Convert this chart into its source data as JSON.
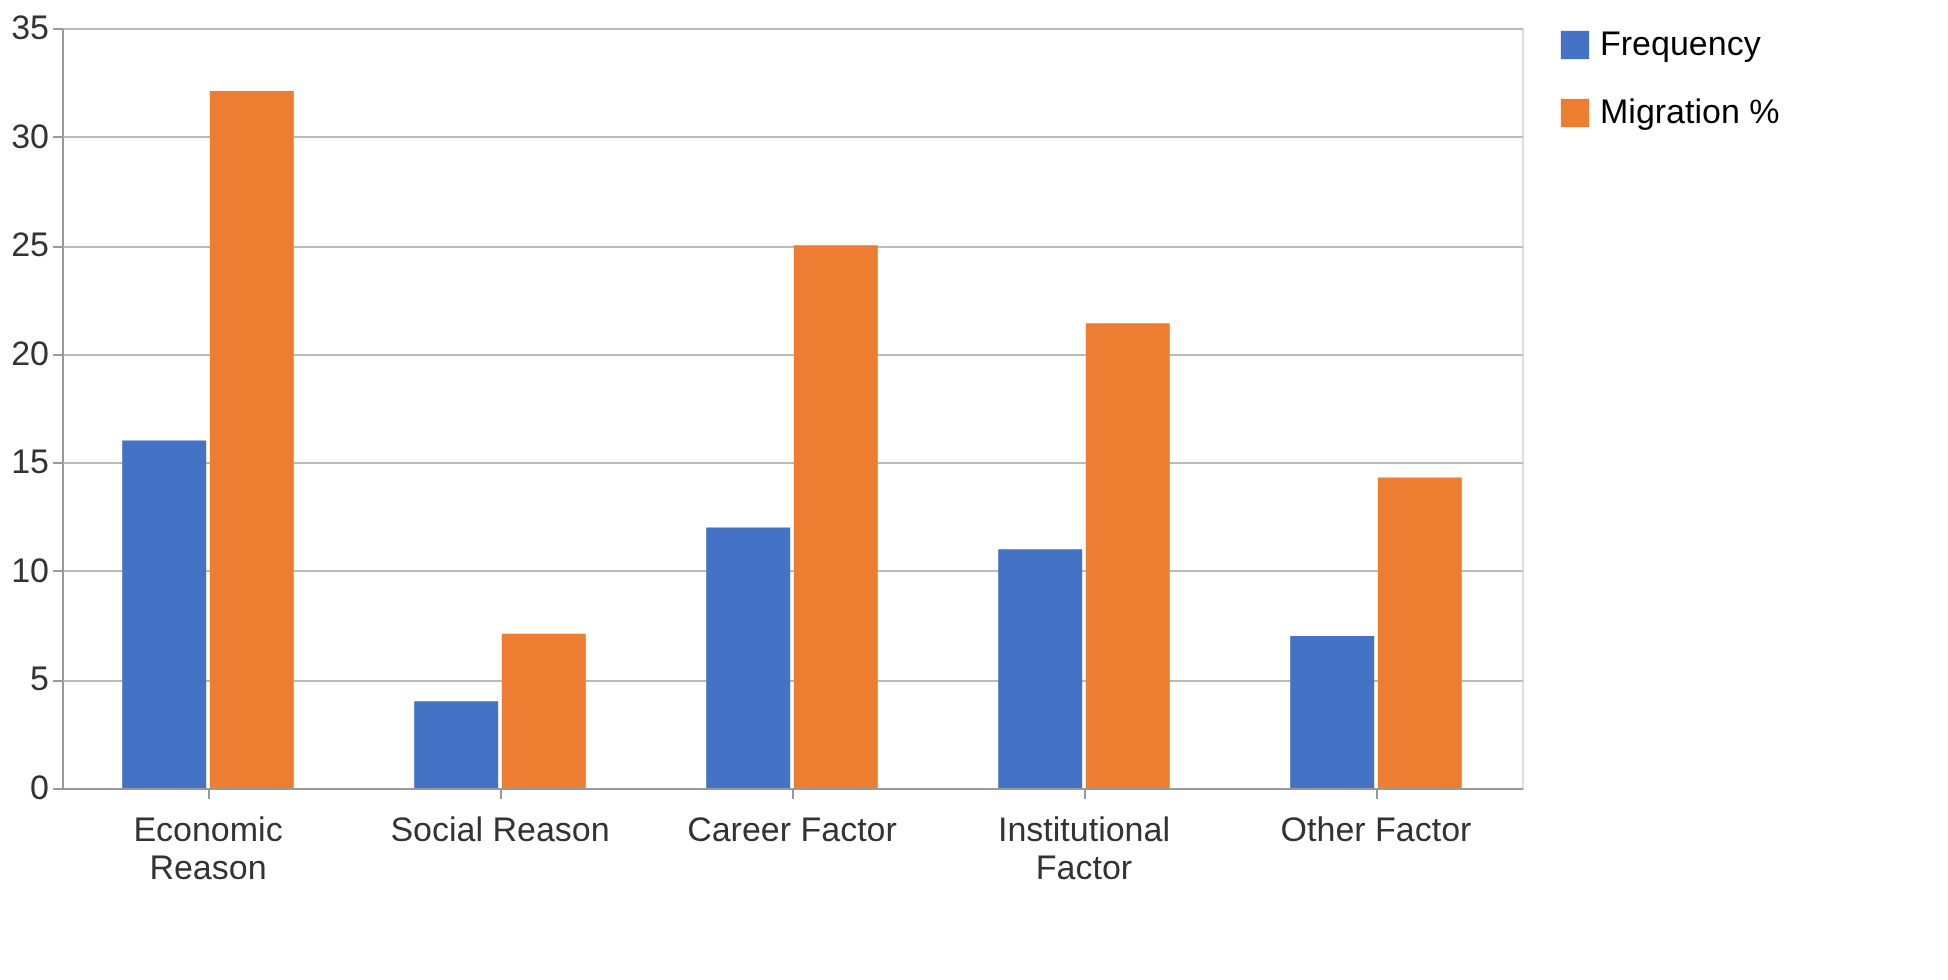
{
  "chart_data": {
    "type": "bar",
    "categories": [
      "Economic Reason",
      "Social Reason",
      "Career Factor",
      "Institutional Factor",
      "Other Factor"
    ],
    "series": [
      {
        "name": "Frequency",
        "color": "#4472c4",
        "values": [
          16,
          4,
          12,
          11,
          7
        ]
      },
      {
        "name": "Migration %",
        "color": "#ed7d31",
        "values": [
          32.1,
          7.1,
          25,
          21.4,
          14.3
        ]
      }
    ],
    "ylim": [
      0,
      35
    ],
    "yticks": [
      0,
      5,
      10,
      15,
      20,
      25,
      30,
      35
    ],
    "grid": "y",
    "legend": "right"
  }
}
